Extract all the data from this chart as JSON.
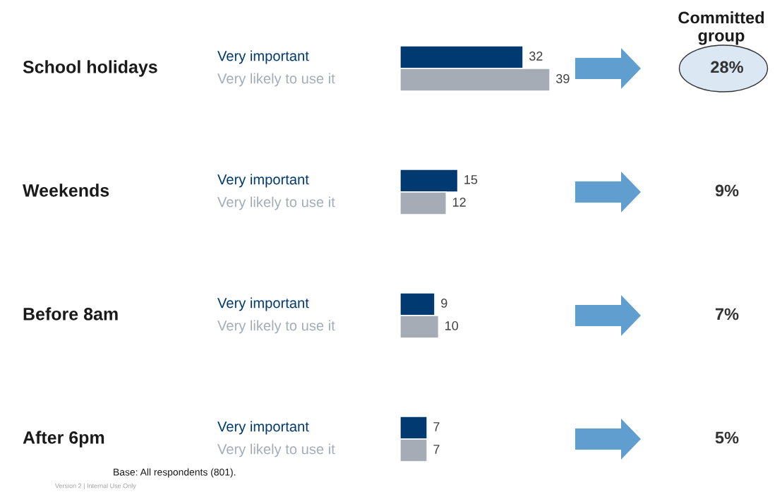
{
  "chart_data": {
    "type": "bar",
    "orientation": "horizontal",
    "categories": [
      "School holidays",
      "Weekends",
      "Before 8am",
      "After 6pm"
    ],
    "series": [
      {
        "name": "Very important",
        "color": "#003a70",
        "values": [
          32,
          15,
          9,
          7
        ]
      },
      {
        "name": "Very likely to use it",
        "color": "#a5acb5",
        "values": [
          39,
          12,
          10,
          7
        ]
      }
    ],
    "data_labels": true,
    "legend": false,
    "annotations": [
      "Committed group",
      "28%",
      "9%",
      "7%",
      "5%",
      "Base: All respondents (801).",
      "Version 2 | Internal Use Only"
    ]
  }
}
